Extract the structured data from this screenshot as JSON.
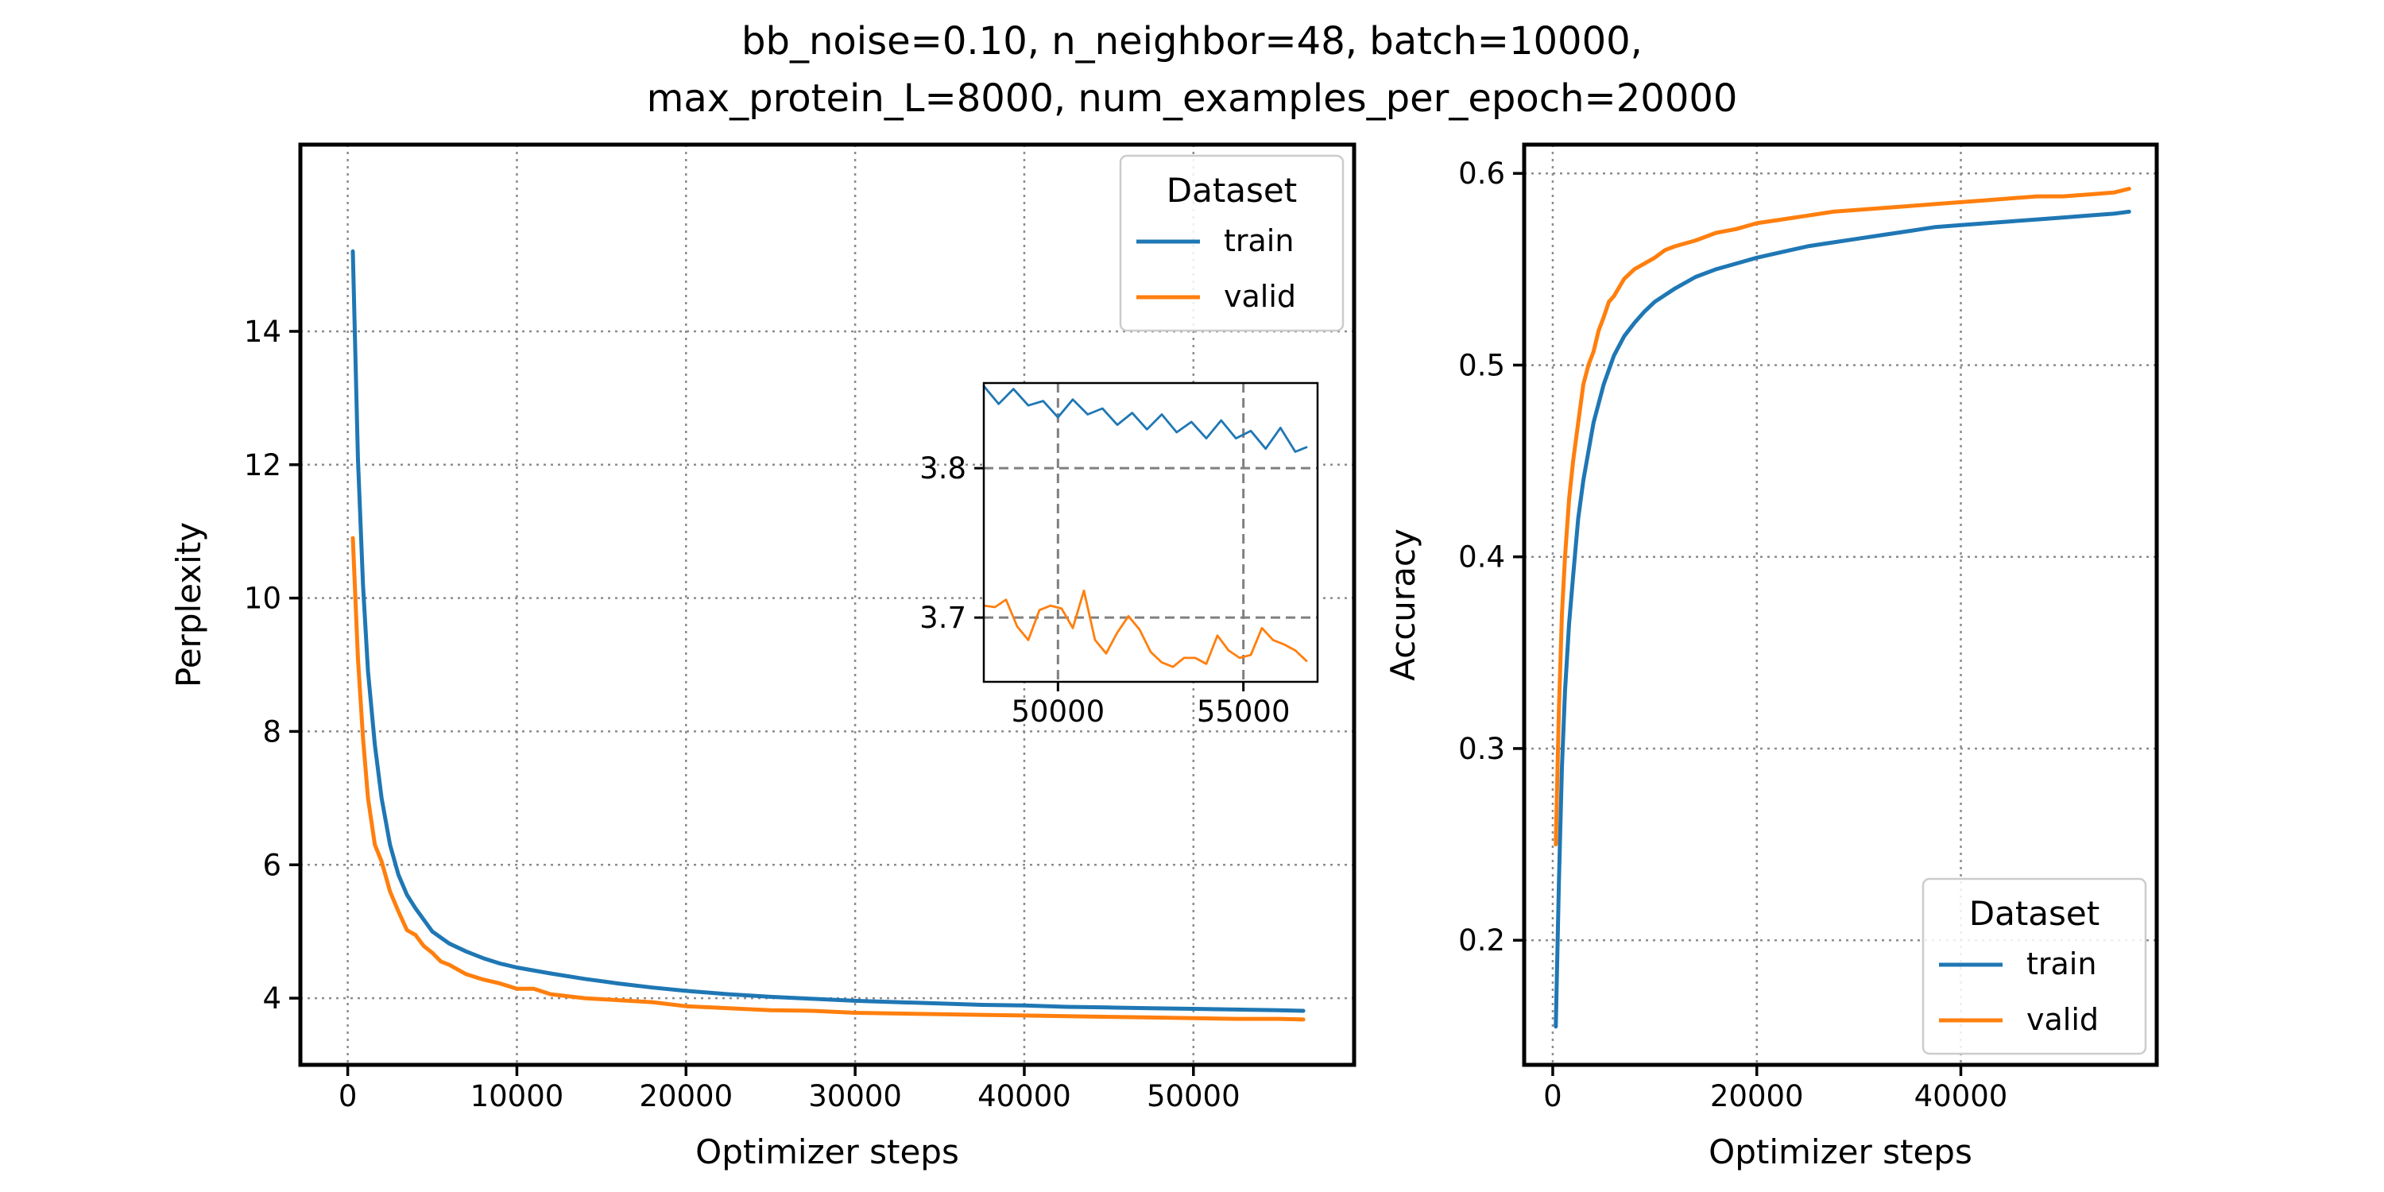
{
  "figure": {
    "title_line1": "bb_noise=0.10, n_neighbor=48, batch=10000,",
    "title_line2": "max_protein_L=8000, num_examples_per_epoch=20000"
  },
  "colors": {
    "train": "#1f77b4",
    "valid": "#ff7f0e"
  },
  "chart_data": [
    {
      "type": "line",
      "xlabel": "Optimizer steps",
      "ylabel": "Perplexity",
      "xlim": [
        -2800,
        59500
      ],
      "ylim": [
        3.0,
        16.8
      ],
      "xticks": [
        0,
        10000,
        20000,
        30000,
        40000,
        50000
      ],
      "yticks": [
        4,
        6,
        8,
        10,
        12,
        14
      ],
      "grid": true,
      "legend": {
        "title": "Dataset",
        "position": "top-right",
        "entries": [
          "train",
          "valid"
        ]
      },
      "series": [
        {
          "name": "train",
          "x": [
            300,
            600,
            900,
            1200,
            1600,
            2000,
            2500,
            3000,
            3500,
            4000,
            5000,
            6000,
            7000,
            8000,
            9000,
            10000,
            12000,
            14000,
            16000,
            18000,
            20000,
            22500,
            25000,
            27500,
            30000,
            32500,
            35000,
            37500,
            40000,
            42500,
            45000,
            47500,
            50000,
            52500,
            55000,
            56500
          ],
          "y": [
            15.2,
            12.1,
            10.2,
            8.9,
            7.8,
            7.0,
            6.3,
            5.85,
            5.55,
            5.35,
            5.0,
            4.82,
            4.7,
            4.6,
            4.52,
            4.46,
            4.37,
            4.29,
            4.22,
            4.16,
            4.11,
            4.06,
            4.02,
            3.99,
            3.96,
            3.94,
            3.92,
            3.9,
            3.89,
            3.87,
            3.86,
            3.85,
            3.84,
            3.83,
            3.82,
            3.81
          ]
        },
        {
          "name": "valid",
          "x": [
            300,
            600,
            900,
            1200,
            1600,
            2000,
            2500,
            3000,
            3500,
            4000,
            4500,
            5000,
            5500,
            6000,
            7000,
            8000,
            9000,
            10000,
            11000,
            12000,
            13000,
            14000,
            16000,
            18000,
            20000,
            22500,
            25000,
            27500,
            30000,
            32500,
            35000,
            37500,
            40000,
            42500,
            45000,
            47500,
            50000,
            52500,
            55000,
            56500
          ],
          "y": [
            10.9,
            9.1,
            7.9,
            7.0,
            6.3,
            6.05,
            5.6,
            5.3,
            5.02,
            4.95,
            4.78,
            4.68,
            4.55,
            4.5,
            4.36,
            4.28,
            4.22,
            4.14,
            4.14,
            4.06,
            4.03,
            4.0,
            3.97,
            3.94,
            3.88,
            3.85,
            3.82,
            3.81,
            3.78,
            3.77,
            3.76,
            3.75,
            3.74,
            3.73,
            3.72,
            3.71,
            3.7,
            3.69,
            3.69,
            3.68
          ]
        }
      ]
    },
    {
      "type": "line",
      "role": "inset",
      "xlim": [
        48000,
        57000
      ],
      "ylim": [
        3.657,
        3.857
      ],
      "xticks": [
        50000,
        55000
      ],
      "yticks": [
        3.7,
        3.8
      ],
      "grid": true,
      "series": [
        {
          "name": "train",
          "x": [
            48000,
            48400,
            48800,
            49200,
            49600,
            50000,
            50400,
            50800,
            51200,
            51600,
            52000,
            52400,
            52800,
            53200,
            53600,
            54000,
            54400,
            54800,
            55200,
            55600,
            56000,
            56400,
            56700
          ],
          "y": [
            3.855,
            3.843,
            3.853,
            3.842,
            3.845,
            3.834,
            3.846,
            3.836,
            3.84,
            3.829,
            3.837,
            3.826,
            3.836,
            3.824,
            3.831,
            3.82,
            3.832,
            3.82,
            3.825,
            3.813,
            3.827,
            3.811,
            3.814
          ]
        },
        {
          "name": "valid",
          "x": [
            48000,
            48300,
            48600,
            48900,
            49200,
            49500,
            49800,
            50100,
            50400,
            50700,
            51000,
            51300,
            51600,
            51900,
            52200,
            52500,
            52800,
            53100,
            53400,
            53700,
            54000,
            54300,
            54600,
            54900,
            55200,
            55500,
            55800,
            56100,
            56400,
            56700
          ],
          "y": [
            3.708,
            3.707,
            3.712,
            3.694,
            3.685,
            3.705,
            3.708,
            3.706,
            3.693,
            3.718,
            3.685,
            3.676,
            3.69,
            3.701,
            3.692,
            3.677,
            3.67,
            3.667,
            3.673,
            3.673,
            3.669,
            3.688,
            3.678,
            3.673,
            3.675,
            3.693,
            3.685,
            3.682,
            3.678,
            3.671
          ]
        }
      ]
    },
    {
      "type": "line",
      "xlabel": "Optimizer steps",
      "ylabel": "Accuracy",
      "xlim": [
        -2800,
        59200
      ],
      "ylim": [
        0.135,
        0.615
      ],
      "xticks": [
        0,
        20000,
        40000
      ],
      "yticks": [
        0.2,
        0.3,
        0.4,
        0.5,
        0.6
      ],
      "grid": true,
      "legend": {
        "title": "Dataset",
        "position": "bottom-right",
        "entries": [
          "train",
          "valid"
        ]
      },
      "series": [
        {
          "name": "train",
          "x": [
            300,
            600,
            900,
            1200,
            1600,
            2000,
            2500,
            3000,
            3500,
            4000,
            5000,
            6000,
            7000,
            8000,
            9000,
            10000,
            12000,
            14000,
            16000,
            18000,
            20000,
            22500,
            25000,
            27500,
            30000,
            32500,
            35000,
            37500,
            40000,
            42500,
            45000,
            47500,
            50000,
            52500,
            55000,
            56500
          ],
          "y": [
            0.155,
            0.23,
            0.29,
            0.33,
            0.365,
            0.39,
            0.42,
            0.44,
            0.455,
            0.47,
            0.49,
            0.505,
            0.515,
            0.522,
            0.528,
            0.533,
            0.54,
            0.546,
            0.55,
            0.553,
            0.556,
            0.559,
            0.562,
            0.564,
            0.566,
            0.568,
            0.57,
            0.572,
            0.573,
            0.574,
            0.575,
            0.576,
            0.577,
            0.578,
            0.579,
            0.58
          ]
        },
        {
          "name": "valid",
          "x": [
            300,
            600,
            900,
            1200,
            1600,
            2000,
            2500,
            3000,
            3500,
            4000,
            4500,
            5000,
            5500,
            6000,
            7000,
            8000,
            9000,
            10000,
            11000,
            12000,
            14000,
            16000,
            18000,
            20000,
            22500,
            25000,
            27500,
            30000,
            32500,
            35000,
            37500,
            40000,
            42500,
            45000,
            47500,
            50000,
            52500,
            55000,
            56500
          ],
          "y": [
            0.25,
            0.32,
            0.37,
            0.4,
            0.43,
            0.45,
            0.47,
            0.49,
            0.5,
            0.507,
            0.518,
            0.525,
            0.533,
            0.536,
            0.545,
            0.55,
            0.553,
            0.556,
            0.56,
            0.562,
            0.565,
            0.569,
            0.571,
            0.574,
            0.576,
            0.578,
            0.58,
            0.581,
            0.582,
            0.583,
            0.584,
            0.585,
            0.586,
            0.587,
            0.588,
            0.588,
            0.589,
            0.59,
            0.592
          ]
        }
      ]
    }
  ]
}
